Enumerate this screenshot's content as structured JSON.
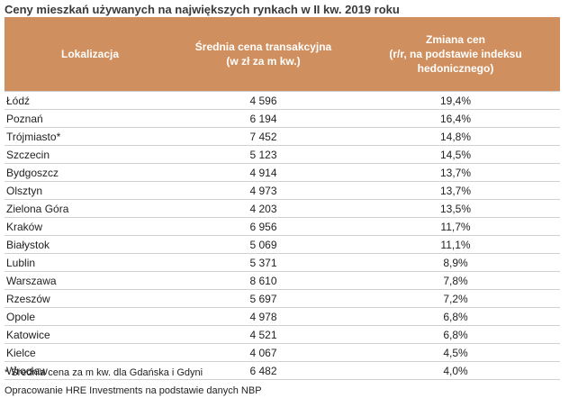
{
  "title": "Ceny mieszkań używanych na największych rynkach w II kw. 2019 roku",
  "headers": {
    "location": "Lokalizacja",
    "price_line1": "Średnia cena transakcyjna",
    "price_line2": "(w zł za m kw.)",
    "change_line1": "Zmiana cen",
    "change_line2": "(r/r, na podstawie indeksu",
    "change_line3": "hedonicznego)"
  },
  "header_color": "#d08f5e",
  "rows": [
    {
      "location": "Łódź",
      "price": "4 596",
      "change": "19,4%"
    },
    {
      "location": "Poznań",
      "price": "6 194",
      "change": "16,4%"
    },
    {
      "location": "Trójmiasto*",
      "price": "7 452",
      "change": "14,8%"
    },
    {
      "location": "Szczecin",
      "price": "5 123",
      "change": "14,5%"
    },
    {
      "location": "Bydgoszcz",
      "price": "4 914",
      "change": "13,7%"
    },
    {
      "location": "Olsztyn",
      "price": "4 973",
      "change": "13,7%"
    },
    {
      "location": "Zielona Góra",
      "price": "4 203",
      "change": "13,5%"
    },
    {
      "location": "Kraków",
      "price": "6 956",
      "change": "11,7%"
    },
    {
      "location": "Białystok",
      "price": "5 069",
      "change": "11,1%"
    },
    {
      "location": "Lublin",
      "price": "5 371",
      "change": "8,9%"
    },
    {
      "location": "Warszawa",
      "price": "8 610",
      "change": "7,8%"
    },
    {
      "location": "Rzeszów",
      "price": "5 697",
      "change": "7,2%"
    },
    {
      "location": "Opole",
      "price": "4 978",
      "change": "6,8%"
    },
    {
      "location": "Katowice",
      "price": "4 521",
      "change": "6,8%"
    },
    {
      "location": "Kielce",
      "price": "4 067",
      "change": "4,5%"
    },
    {
      "location": "Wrocław",
      "price": "6 482",
      "change": "4,0%"
    }
  ],
  "footnote": "* Średnia cena za m kw. dla Gdańska i Gdyni",
  "source": "Opracowanie HRE Investments na podstawie danych NBP"
}
